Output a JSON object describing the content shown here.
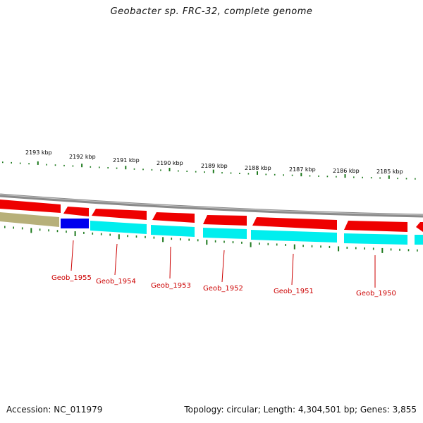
{
  "title": "Geobacter sp. FRC-32, complete genome",
  "footer": {
    "accession": "Accession: NC_011979",
    "summary": "Topology: circular; Length: 4,304,501 bp; Genes: 3,855"
  },
  "ruler": {
    "labels": [
      "2193 kbp",
      "2192 kbp",
      "2191 kbp",
      "2190 kbp",
      "2189 kbp",
      "2188 kbp",
      "2187 kbp",
      "2186 kbp",
      "2185 kbp"
    ]
  },
  "genes": {
    "labels": [
      "Geob_1955",
      "Geob_1954",
      "Geob_1953",
      "Geob_1952",
      "Geob_1951",
      "Geob_1950"
    ]
  },
  "colors": {
    "backbone": "#8a8a8a",
    "cds_reverse": "#ee0000",
    "cds_highlight": "#0000ee",
    "track_cyan": "#00eeee",
    "track_olive": "#b7b07a",
    "tick": "#1e7a1e",
    "gene_label": "#cc0000"
  }
}
